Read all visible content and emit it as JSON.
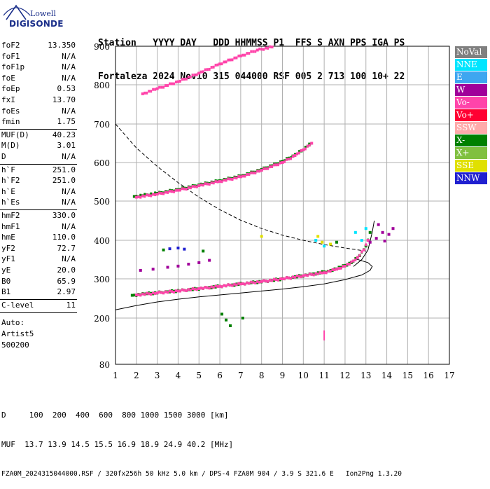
{
  "logo": {
    "line1": "Lowell",
    "line2": "DIGISONDE"
  },
  "header": {
    "columns": "Station   YYYY DAY   DDD HHMMSS P1  FFS S AXN PPS IGA PS",
    "values": "Fortaleza 2024 Nov10 315 044000 RSF 005 2 713 100 10+ 22"
  },
  "parameters": [
    {
      "name": "foF2",
      "value": "13.350"
    },
    {
      "name": "foF1",
      "value": "N/A"
    },
    {
      "name": "foF1p",
      "value": "N/A"
    },
    {
      "name": "foE",
      "value": "N/A"
    },
    {
      "name": "foEp",
      "value": "0.53"
    },
    {
      "name": "fxI",
      "value": "13.70"
    },
    {
      "name": "foEs",
      "value": "N/A"
    },
    {
      "name": "fmin",
      "value": "1.75"
    },
    {
      "name": "MUF(D)",
      "value": "40.23"
    },
    {
      "name": "M(D)",
      "value": "3.01"
    },
    {
      "name": "D",
      "value": "N/A"
    },
    {
      "name": "h`F",
      "value": "251.0"
    },
    {
      "name": "h`F2",
      "value": "251.0"
    },
    {
      "name": "h`E",
      "value": "N/A"
    },
    {
      "name": "h`Es",
      "value": "N/A"
    },
    {
      "name": "hmF2",
      "value": "330.0"
    },
    {
      "name": "hmF1",
      "value": "N/A"
    },
    {
      "name": "hmE",
      "value": "110.0"
    },
    {
      "name": "yF2",
      "value": "72.7"
    },
    {
      "name": "yF1",
      "value": "N/A"
    },
    {
      "name": "yE",
      "value": "20.0"
    },
    {
      "name": "B0",
      "value": "65.9"
    },
    {
      "name": "B1",
      "value": "2.97"
    },
    {
      "name": "C-level",
      "value": "11"
    }
  ],
  "auto": {
    "line1": "Auto:",
    "line2": "Artist5",
    "line3": "500200"
  },
  "legend": [
    {
      "label": "NoVal",
      "color": "#808080"
    },
    {
      "label": "NNE",
      "color": "#00e5ff"
    },
    {
      "label": "E",
      "color": "#3ea6f0"
    },
    {
      "label": "W",
      "color": "#a0009a"
    },
    {
      "label": "Vo-",
      "color": "#ff44aa"
    },
    {
      "label": "Vo+",
      "color": "#ff0033"
    },
    {
      "label": "SSW",
      "color": "#ffaaaa"
    },
    {
      "label": "X-",
      "color": "#008000"
    },
    {
      "label": "X+",
      "color": "#80c040"
    },
    {
      "label": "SSE",
      "color": "#e0e000"
    },
    {
      "label": "NNW",
      "color": "#2020d0"
    }
  ],
  "footer": {
    "d_line": "D     100  200  400  600  800 1000 1500 3000 [km]",
    "muf_line": "MUF  13.7 13.9 14.5 15.5 16.9 18.9 24.9 40.2 [MHz]",
    "source_line": "FZA0M_2024315044000.RSF / 320fx256h 50 kHz 5.0 km / DPS-4 FZA0M 904 / 3.9 S 321.6 E   Ion2Png 1.3.20"
  },
  "chart_data": {
    "type": "scatter",
    "title": "",
    "xlabel": "",
    "ylabel": "",
    "xlim": [
      1,
      17
    ],
    "ylim": [
      80,
      900
    ],
    "x_ticks": [
      "1",
      "2",
      "3",
      "4",
      "5",
      "6",
      "7",
      "8",
      "9",
      "10",
      "11",
      "12",
      "13",
      "14",
      "15",
      "16",
      "17"
    ],
    "y_ticks": [
      "80",
      "200",
      "300",
      "400",
      "500",
      "600",
      "700",
      "800",
      "900"
    ],
    "y_tick_values": [
      80,
      200,
      300,
      400,
      500,
      600,
      700,
      800,
      900
    ],
    "y_scale": "nonlinear",
    "grid": true,
    "legend_position": "right",
    "series": [
      {
        "name": "X-",
        "color": "#008000",
        "trace": "F2 ordinary",
        "points": [
          [
            1.8,
            258
          ],
          [
            2.5,
            262
          ],
          [
            3.5,
            267
          ],
          [
            4.5,
            272
          ],
          [
            5.5,
            278
          ],
          [
            6.5,
            284
          ],
          [
            7.5,
            290
          ],
          [
            8.5,
            296
          ],
          [
            9.5,
            304
          ],
          [
            10.5,
            313
          ],
          [
            11.2,
            320
          ],
          [
            11.8,
            330
          ],
          [
            12.3,
            342
          ],
          [
            12.7,
            360
          ],
          [
            13.0,
            385
          ],
          [
            13.2,
            420
          ]
        ]
      },
      {
        "name": "Vo-",
        "color": "#ff44aa",
        "trace": "F2 ordinary",
        "points": [
          [
            2.0,
            259
          ],
          [
            3.0,
            264
          ],
          [
            4.0,
            269
          ],
          [
            5.0,
            275
          ],
          [
            6.0,
            281
          ],
          [
            7.0,
            287
          ],
          [
            8.0,
            293
          ],
          [
            9.0,
            300
          ],
          [
            10.0,
            308
          ],
          [
            11.0,
            316
          ],
          [
            11.6,
            325
          ],
          [
            12.2,
            338
          ],
          [
            12.6,
            355
          ],
          [
            12.9,
            375
          ],
          [
            13.1,
            400
          ]
        ]
      },
      {
        "name": "X-",
        "color": "#008000",
        "trace": "2F2",
        "points": [
          [
            1.9,
            512
          ],
          [
            3.0,
            520
          ],
          [
            4.0,
            530
          ],
          [
            5.0,
            542
          ],
          [
            6.0,
            553
          ],
          [
            7.0,
            565
          ],
          [
            8.0,
            582
          ],
          [
            9.0,
            603
          ],
          [
            9.5,
            617
          ],
          [
            9.9,
            630
          ],
          [
            10.3,
            648
          ]
        ]
      },
      {
        "name": "Vo-",
        "color": "#ff44aa",
        "trace": "2F2",
        "points": [
          [
            2.0,
            510
          ],
          [
            3.0,
            518
          ],
          [
            4.0,
            528
          ],
          [
            5.0,
            540
          ],
          [
            6.0,
            551
          ],
          [
            7.0,
            563
          ],
          [
            8.0,
            580
          ],
          [
            9.0,
            600
          ],
          [
            9.6,
            618
          ],
          [
            10.0,
            633
          ],
          [
            10.4,
            650
          ]
        ]
      },
      {
        "name": "Vo-",
        "color": "#ff44aa",
        "trace": "3F2",
        "points": [
          [
            2.3,
            777
          ],
          [
            3.0,
            790
          ],
          [
            4.0,
            808
          ],
          [
            5.0,
            830
          ],
          [
            6.0,
            854
          ],
          [
            7.0,
            875
          ],
          [
            7.8,
            890
          ],
          [
            8.5,
            898
          ]
        ]
      },
      {
        "name": "W",
        "color": "#a0009a",
        "trace": "low",
        "points": [
          [
            2.2,
            322
          ],
          [
            2.8,
            325
          ],
          [
            3.5,
            330
          ],
          [
            4.0,
            333
          ],
          [
            4.5,
            338
          ],
          [
            5.0,
            342
          ],
          [
            5.5,
            348
          ]
        ]
      },
      {
        "name": "W",
        "color": "#a0009a",
        "trace": "cluster",
        "points": [
          [
            13.2,
            395
          ],
          [
            13.5,
            405
          ],
          [
            13.8,
            420
          ],
          [
            14.1,
            415
          ],
          [
            14.3,
            430
          ],
          [
            13.6,
            440
          ],
          [
            13.9,
            398
          ]
        ]
      },
      {
        "name": "NNE",
        "color": "#00e5ff",
        "trace": "cluster",
        "points": [
          [
            12.8,
            400
          ],
          [
            13.0,
            430
          ],
          [
            11.0,
            385
          ],
          [
            10.6,
            400
          ],
          [
            12.5,
            420
          ]
        ]
      },
      {
        "name": "SSE",
        "color": "#e0e000",
        "trace": "cluster",
        "points": [
          [
            10.9,
            395
          ],
          [
            11.3,
            390
          ],
          [
            10.7,
            410
          ],
          [
            8.0,
            410
          ]
        ]
      },
      {
        "name": "X-",
        "color": "#008000",
        "trace": "sporadic",
        "points": [
          [
            6.1,
            210
          ],
          [
            6.3,
            195
          ],
          [
            6.5,
            180
          ],
          [
            7.1,
            200
          ],
          [
            3.3,
            375
          ],
          [
            5.2,
            372
          ],
          [
            11.6,
            395
          ]
        ]
      },
      {
        "name": "NNW",
        "color": "#2020d0",
        "trace": "sporadic",
        "points": [
          [
            3.6,
            378
          ],
          [
            4.0,
            380
          ],
          [
            4.3,
            377
          ]
        ]
      }
    ],
    "curves": [
      {
        "style": "dashed",
        "description": "D-region",
        "points": [
          [
            1.0,
            700
          ],
          [
            2.0,
            638
          ],
          [
            3.0,
            590
          ],
          [
            4.0,
            548
          ],
          [
            5.0,
            510
          ],
          [
            6.0,
            478
          ],
          [
            7.0,
            451
          ],
          [
            8.0,
            430
          ],
          [
            9.0,
            413
          ],
          [
            10.0,
            400
          ],
          [
            11.0,
            389
          ],
          [
            12.0,
            380
          ],
          [
            13.0,
            372
          ]
        ]
      },
      {
        "style": "solid",
        "description": "profile",
        "points": [
          [
            1.0,
            221
          ],
          [
            2.0,
            232
          ],
          [
            3.0,
            241
          ],
          [
            4.0,
            248
          ],
          [
            5.0,
            254
          ],
          [
            6.0,
            259
          ],
          [
            7.0,
            264
          ],
          [
            8.0,
            269
          ],
          [
            9.0,
            274
          ],
          [
            10.0,
            280
          ],
          [
            11.0,
            287
          ],
          [
            12.0,
            298
          ],
          [
            12.8,
            310
          ],
          [
            13.2,
            322
          ],
          [
            13.3,
            332
          ],
          [
            13.1,
            342
          ],
          [
            12.5,
            352
          ]
        ]
      },
      {
        "style": "solid",
        "description": "profile",
        "points": [
          [
            12.4,
            332
          ],
          [
            12.8,
            350
          ],
          [
            13.1,
            375
          ],
          [
            13.3,
            420
          ],
          [
            13.4,
            450
          ]
        ]
      }
    ],
    "marker": {
      "x": 11.0,
      "y_from": 168,
      "y_to": 142,
      "color": "#ff44aa"
    }
  }
}
